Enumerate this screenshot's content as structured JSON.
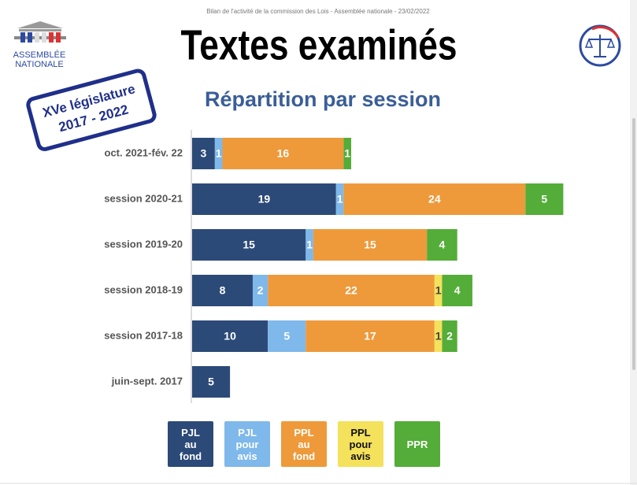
{
  "header": "Bilan de l'activité de la commission des Lois - Assemblée nationale - 23/02/2022",
  "logo": [
    "ASSEMBLÉE",
    "NATIONALE"
  ],
  "stamp": [
    "XVe législature",
    "2017 - 2022"
  ],
  "chart_data": {
    "type": "stacked-bar-horizontal",
    "title": "Textes examinés",
    "subtitle": "Répartition par session",
    "categories": [
      "oct. 2021-fév. 22",
      "session 2020-21",
      "session 2019-20",
      "session 2018-19",
      "session 2017-18",
      "juin-sept. 2017"
    ],
    "series": [
      {
        "name": "PJL au fond",
        "color": "#2c4a78",
        "values": [
          3,
          19,
          15,
          8,
          10,
          5
        ]
      },
      {
        "name": "PJL pour avis",
        "color": "#7fb8ea",
        "values": [
          1,
          1,
          1,
          2,
          5,
          null
        ]
      },
      {
        "name": "PPL au fond",
        "color": "#ee9a3b",
        "values": [
          16,
          24,
          15,
          22,
          17,
          null
        ]
      },
      {
        "name": "PPL pour avis",
        "color": "#f4e15c",
        "values": [
          null,
          null,
          null,
          1,
          1,
          null
        ]
      },
      {
        "name": "PPR",
        "color": "#53ad38",
        "values": [
          1,
          5,
          4,
          4,
          2,
          null
        ]
      }
    ]
  }
}
